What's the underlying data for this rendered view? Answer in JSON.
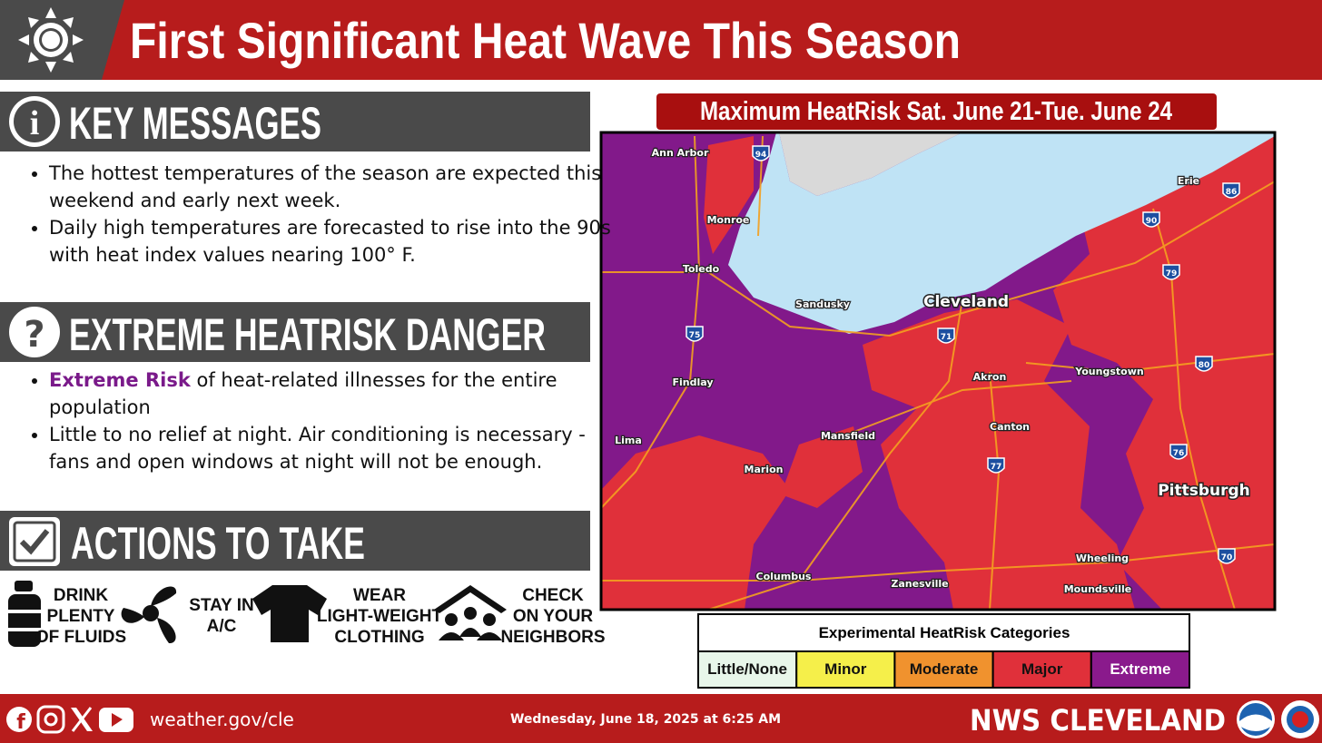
{
  "header": {
    "title": "First Significant Heat Wave This Season"
  },
  "key_messages": {
    "heading": "KEY MESSAGES",
    "bullets": [
      "The hottest temperatures of the season are expected this weekend and early next week.",
      "Daily high temperatures are forecasted to rise into the 90s with heat index values nearing 100° F."
    ]
  },
  "heatrisk_danger": {
    "heading": "EXTREME HEATRISK DANGER",
    "bullets": [
      {
        "highlight": "Extreme Risk",
        "text": "of heat-related illnesses for the entire population"
      },
      "Little to no relief at night. Air conditioning is necessary - fans and open windows at night will not be enough."
    ]
  },
  "actions": {
    "heading": "ACTIONS TO TAKE",
    "items": [
      [
        "DRINK",
        "PLENTY",
        "OF FLUIDS"
      ],
      [
        "STAY IN",
        "A/C"
      ],
      [
        "WEAR",
        "LIGHT-WEIGHT",
        "CLOTHING"
      ],
      [
        "CHECK",
        "ON YOUR",
        "NEIGHBORS"
      ]
    ]
  },
  "map": {
    "title": "Maximum HeatRisk Sat. June 21-Tue. June 24",
    "cities": [
      "Ann Arbor",
      "Monroe",
      "Toledo",
      "Sandusky",
      "Cleveland",
      "Erie",
      "Findlay",
      "Youngstown",
      "Akron",
      "Canton",
      "Mansfield",
      "Lima",
      "Marion",
      "Pittsburgh",
      "Wheeling",
      "Columbus",
      "Zanesville",
      "Moundsville"
    ],
    "interstates": [
      "94",
      "86",
      "90",
      "79",
      "75",
      "71",
      "80",
      "76",
      "77",
      "70"
    ]
  },
  "legend": {
    "title": "Experimental HeatRisk Categories",
    "categories": [
      {
        "label": "Little/None",
        "color": "#e8f6ea"
      },
      {
        "label": "Minor",
        "color": "#f5ef4a"
      },
      {
        "label": "Moderate",
        "color": "#f0922e"
      },
      {
        "label": "Major",
        "color": "#e0303a"
      },
      {
        "label": "Extreme",
        "color": "#8a1a8c"
      }
    ]
  },
  "footer": {
    "url": "weather.gov/cle",
    "timestamp": "Wednesday, June 18, 2025 at 6:25 AM",
    "office": "NWS CLEVELAND"
  }
}
